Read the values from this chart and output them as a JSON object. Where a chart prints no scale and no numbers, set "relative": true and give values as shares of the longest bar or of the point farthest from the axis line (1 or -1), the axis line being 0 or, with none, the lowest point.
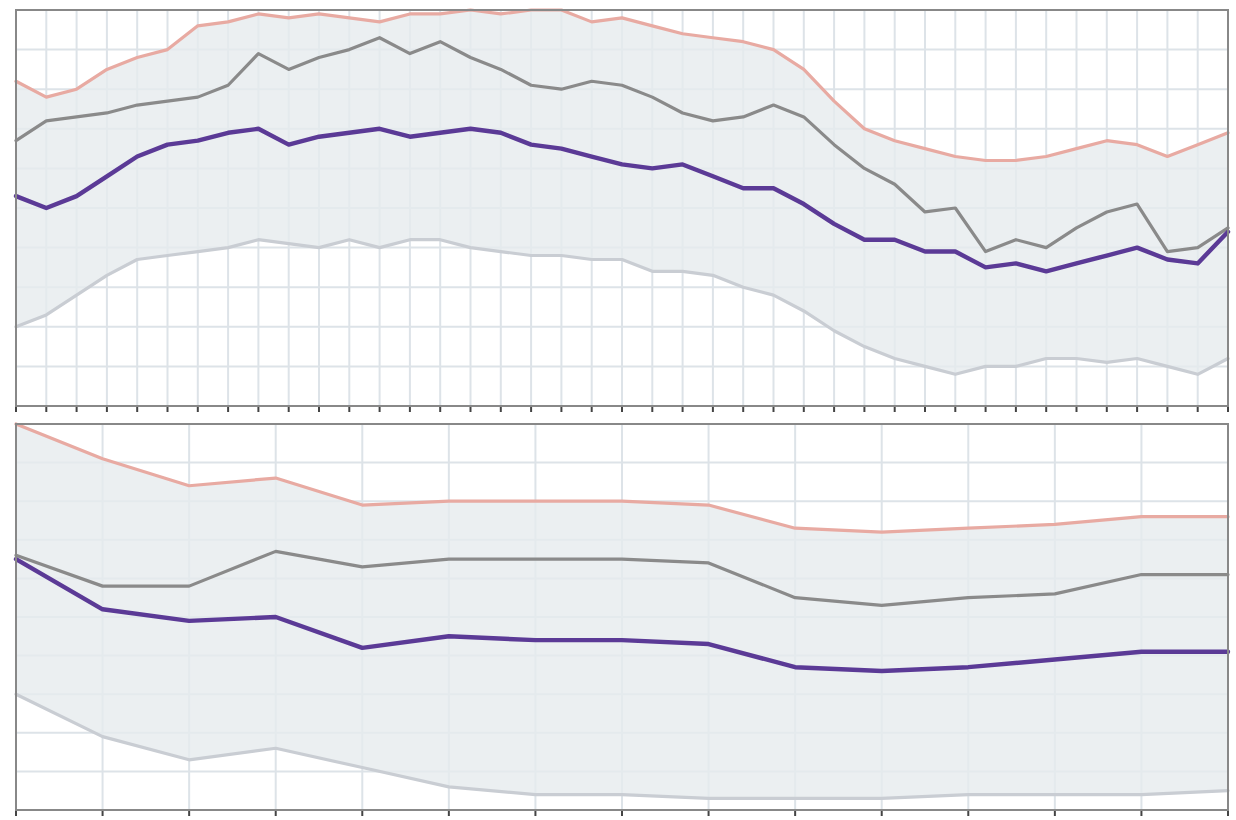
{
  "chart_data": [
    {
      "type": "line",
      "relative": true,
      "grid": true,
      "marker": "none",
      "categories": [
        null,
        null,
        null,
        null,
        null,
        null,
        null,
        null,
        null,
        null,
        null,
        null,
        null,
        null,
        null,
        null,
        null,
        null,
        null,
        null,
        null,
        null,
        null,
        null,
        null,
        null,
        null,
        null,
        null,
        null,
        null,
        null,
        null,
        null,
        null,
        null,
        null,
        null,
        null,
        null,
        null
      ],
      "series": [
        {
          "color": "#e8aaa2",
          "values": [
            0.82,
            0.78,
            0.8,
            0.85,
            0.88,
            0.9,
            0.96,
            0.97,
            0.99,
            0.98,
            0.99,
            0.98,
            0.97,
            0.99,
            0.99,
            1,
            0.99,
            1,
            1,
            0.97,
            0.98,
            0.96,
            0.94,
            0.93,
            0.92,
            0.9,
            0.85,
            0.77,
            0.7,
            0.67,
            0.65,
            0.63,
            0.62,
            0.62,
            0.63,
            0.65,
            0.67,
            0.66,
            0.63,
            0.66,
            0.69
          ]
        },
        {
          "color": "#c9cdd3",
          "values": [
            0.2,
            0.23,
            0.28,
            0.33,
            0.37,
            0.38,
            0.39,
            0.4,
            0.42,
            0.41,
            0.4,
            0.42,
            0.4,
            0.42,
            0.42,
            0.4,
            0.39,
            0.38,
            0.38,
            0.37,
            0.37,
            0.34,
            0.34,
            0.33,
            0.3,
            0.28,
            0.24,
            0.19,
            0.15,
            0.12,
            0.1,
            0.08,
            0.1,
            0.1,
            0.12,
            0.12,
            0.11,
            0.12,
            0.1,
            0.08,
            0.12
          ]
        },
        {
          "color": "#8a8a8a",
          "values": [
            0.67,
            0.72,
            0.73,
            0.74,
            0.76,
            0.77,
            0.78,
            0.81,
            0.89,
            0.85,
            0.88,
            0.9,
            0.93,
            0.89,
            0.92,
            0.88,
            0.85,
            0.81,
            0.8,
            0.82,
            0.81,
            0.78,
            0.74,
            0.72,
            0.73,
            0.76,
            0.73,
            0.66,
            0.6,
            0.56,
            0.49,
            0.5,
            0.39,
            0.42,
            0.4,
            0.45,
            0.49,
            0.51,
            0.39,
            0.4,
            0.45
          ],
          "lower": [
            0.2,
            0.23,
            0.28,
            0.33,
            0.37,
            0.38,
            0.39,
            0.4,
            0.42,
            0.41,
            0.4,
            0.42,
            0.4,
            0.42,
            0.42,
            0.4,
            0.39,
            0.38,
            0.38,
            0.37,
            0.37,
            0.34,
            0.34,
            0.33,
            0.3,
            0.28,
            0.24,
            0.19,
            0.15,
            0.12,
            0.1,
            0.08,
            0.1,
            0.1,
            0.12,
            0.12,
            0.11,
            0.12,
            0.1,
            0.08,
            0.12
          ],
          "upper": [
            0.82,
            0.78,
            0.8,
            0.85,
            0.88,
            0.9,
            0.96,
            0.97,
            0.99,
            0.98,
            0.99,
            0.98,
            0.97,
            0.99,
            0.99,
            1,
            0.99,
            1,
            1,
            0.97,
            0.98,
            0.96,
            0.94,
            0.93,
            0.92,
            0.9,
            0.85,
            0.77,
            0.7,
            0.67,
            0.65,
            0.63,
            0.62,
            0.62,
            0.63,
            0.65,
            0.67,
            0.66,
            0.63,
            0.66,
            0.69
          ]
        },
        {
          "color": "#5b3a96",
          "values": [
            0.53,
            0.5,
            0.53,
            0.58,
            0.63,
            0.66,
            0.67,
            0.69,
            0.7,
            0.66,
            0.68,
            0.69,
            0.7,
            0.68,
            0.69,
            0.7,
            0.69,
            0.66,
            0.65,
            0.63,
            0.61,
            0.6,
            0.61,
            0.58,
            0.55,
            0.55,
            0.51,
            0.46,
            0.42,
            0.42,
            0.39,
            0.39,
            0.35,
            0.36,
            0.34,
            0.36,
            0.38,
            0.4,
            0.37,
            0.36,
            0.44
          ]
        }
      ]
    },
    {
      "type": "line",
      "relative": true,
      "grid": true,
      "marker": "none",
      "categories": [
        null,
        null,
        null,
        null,
        null,
        null,
        null,
        null,
        null,
        null,
        null,
        null,
        null,
        null,
        null
      ],
      "series": [
        {
          "color": "#e8aaa2",
          "values": [
            1,
            0.91,
            0.84,
            0.86,
            0.79,
            0.8,
            0.8,
            0.8,
            0.79,
            0.73,
            0.72,
            0.73,
            0.74,
            0.76,
            0.76
          ]
        },
        {
          "color": "#c9cdd3",
          "values": [
            0.3,
            0.19,
            0.13,
            0.16,
            0.11,
            0.06,
            0.04,
            0.04,
            0.03,
            0.03,
            0.03,
            0.04,
            0.04,
            0.04,
            0.05
          ]
        },
        {
          "color": "#8a8a8a",
          "values": [
            0.66,
            0.58,
            0.58,
            0.67,
            0.63,
            0.65,
            0.65,
            0.65,
            0.64,
            0.55,
            0.53,
            0.55,
            0.56,
            0.61,
            0.61
          ],
          "lower": [
            0.3,
            0.19,
            0.13,
            0.16,
            0.11,
            0.06,
            0.04,
            0.04,
            0.03,
            0.03,
            0.03,
            0.04,
            0.04,
            0.04,
            0.05
          ],
          "upper": [
            1,
            0.91,
            0.84,
            0.86,
            0.79,
            0.8,
            0.8,
            0.8,
            0.79,
            0.73,
            0.72,
            0.73,
            0.74,
            0.76,
            0.76
          ]
        },
        {
          "color": "#5b3a96",
          "values": [
            0.65,
            0.52,
            0.49,
            0.5,
            0.42,
            0.45,
            0.44,
            0.44,
            0.43,
            0.37,
            0.36,
            0.37,
            0.39,
            0.41,
            0.41
          ]
        }
      ]
    }
  ]
}
